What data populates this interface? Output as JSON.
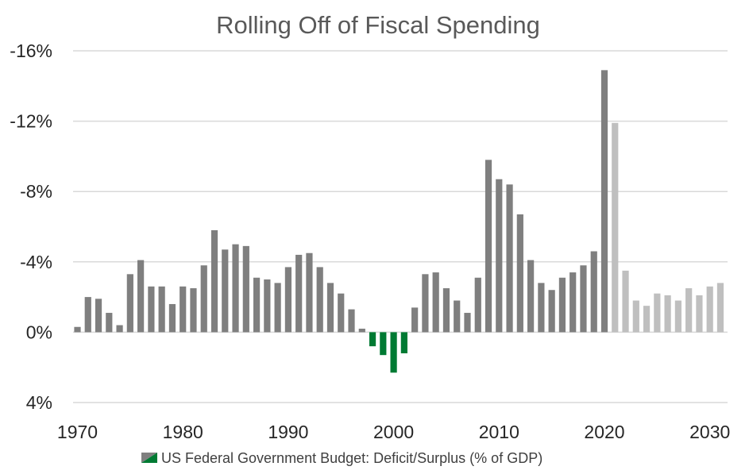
{
  "chart_data": {
    "type": "bar",
    "title": "Rolling Off of Fiscal Spending",
    "xlabel": "",
    "ylabel": "",
    "y_axis_inverted": true,
    "ylim": [
      4,
      -16
    ],
    "y_ticks": [
      -16,
      -12,
      -8,
      -4,
      0,
      4
    ],
    "y_tick_labels": [
      "-16%",
      "-12%",
      "-8%",
      "-4%",
      "0%",
      "4%"
    ],
    "x_ticks": [
      "1970",
      "1980",
      "1990",
      "2000",
      "2010",
      "2020",
      "2030"
    ],
    "grid": true,
    "legend": {
      "position": "bottom",
      "entries": [
        "US Federal Government Budget: Deficit/Surplus (% of GDP)"
      ]
    },
    "colors": {
      "deficit": "#7f7f7f",
      "surplus": "#007a33",
      "projection": "#bfbfbf",
      "grid": "#d9d9d9"
    },
    "x": [
      1970,
      1971,
      1972,
      1973,
      1974,
      1975,
      1976,
      1977,
      1978,
      1979,
      1980,
      1981,
      1982,
      1983,
      1984,
      1985,
      1986,
      1987,
      1988,
      1989,
      1990,
      1991,
      1992,
      1993,
      1994,
      1995,
      1996,
      1997,
      1998,
      1999,
      2000,
      2001,
      2002,
      2003,
      2004,
      2005,
      2006,
      2007,
      2008,
      2009,
      2010,
      2011,
      2012,
      2013,
      2014,
      2015,
      2016,
      2017,
      2018,
      2019,
      2020,
      2021,
      2022,
      2023,
      2024,
      2025,
      2026,
      2027,
      2028,
      2029,
      2030,
      2031
    ],
    "values": [
      -0.3,
      -2.0,
      -1.9,
      -1.1,
      -0.4,
      -3.3,
      -4.1,
      -2.6,
      -2.6,
      -1.6,
      -2.6,
      -2.5,
      -3.8,
      -5.8,
      -4.7,
      -5.0,
      -4.9,
      -3.1,
      -3.0,
      -2.8,
      -3.7,
      -4.4,
      -4.5,
      -3.7,
      -2.8,
      -2.2,
      -1.3,
      -0.2,
      0.8,
      1.3,
      2.3,
      1.2,
      -1.4,
      -3.3,
      -3.4,
      -2.5,
      -1.8,
      -1.1,
      -3.1,
      -9.8,
      -8.7,
      -8.4,
      -6.7,
      -4.1,
      -2.8,
      -2.4,
      -3.1,
      -3.4,
      -3.8,
      -4.6,
      -14.9,
      -11.9,
      -3.5,
      -1.8,
      -1.5,
      -2.2,
      -2.1,
      -1.8,
      -2.5,
      -2.1,
      -2.6,
      -2.8
    ],
    "projection_start": 2021
  }
}
